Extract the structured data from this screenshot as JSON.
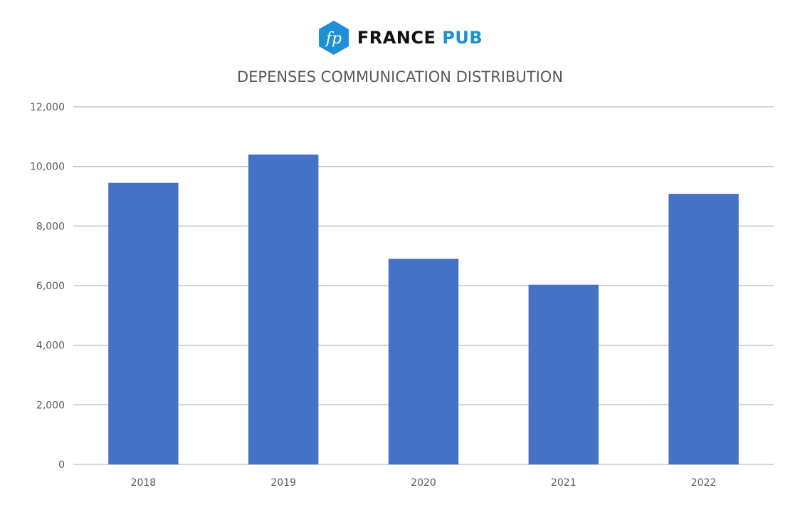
{
  "brand": {
    "monogram": "fp",
    "name_part1": "FRANCE",
    "name_part2": "PUB",
    "colors": {
      "accent": "#1e90d6",
      "text": "#111111"
    }
  },
  "chart_data": {
    "type": "bar",
    "title": "DEPENSES COMMUNICATION DISTRIBUTION",
    "xlabel": "",
    "ylabel": "",
    "categories": [
      "2018",
      "2019",
      "2020",
      "2021",
      "2022"
    ],
    "values": [
      9450,
      10400,
      6900,
      6030,
      9080
    ],
    "ylim": [
      0,
      12000
    ],
    "yticks": [
      0,
      2000,
      4000,
      6000,
      8000,
      10000,
      12000
    ],
    "ytick_labels": [
      "0",
      "2,000",
      "4,000",
      "6,000",
      "8,000",
      "10,000",
      "12,000"
    ],
    "grid": true,
    "legend": "none",
    "bar_color": "#4472c4",
    "grid_color": "#bfbfbf"
  }
}
